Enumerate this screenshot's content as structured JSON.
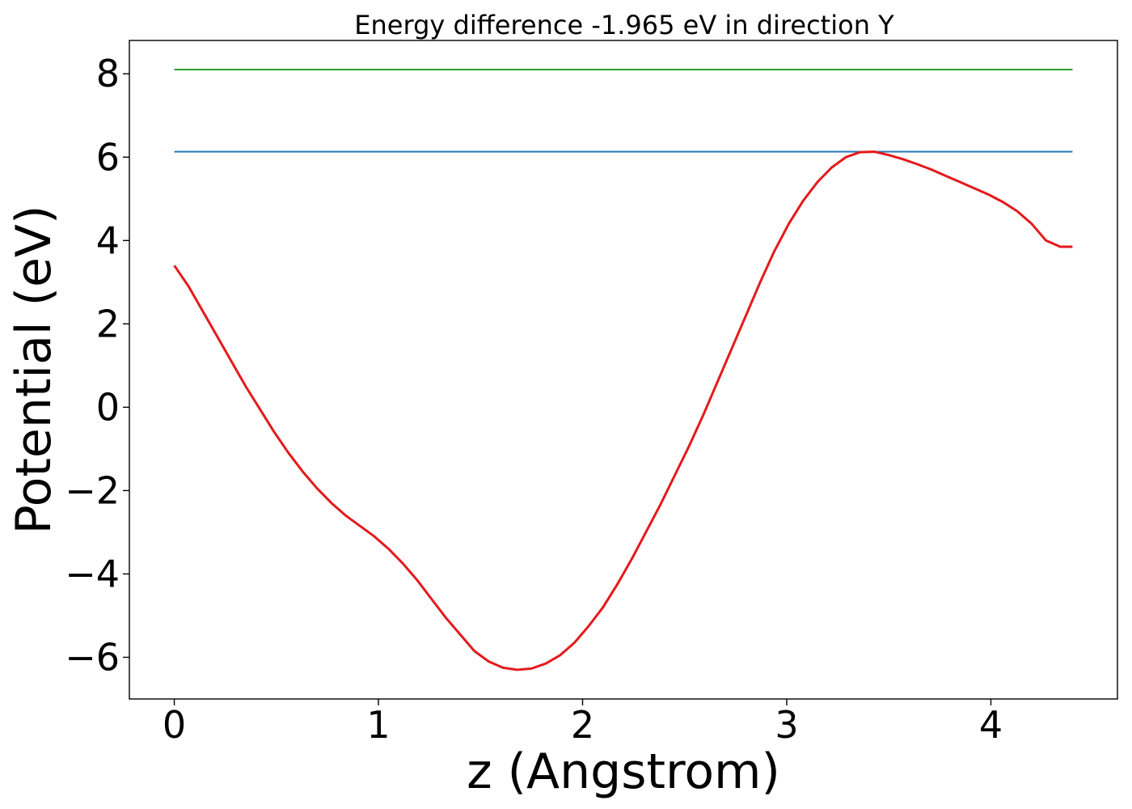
{
  "chart_data": {
    "type": "line",
    "title": "Energy difference -1.965 eV in direction Y",
    "xlabel": "z (Angstrom)",
    "ylabel": "Potential (eV)",
    "xlim": [
      -0.22,
      4.62
    ],
    "ylim": [
      -7.0,
      8.8
    ],
    "xticks": [
      0,
      1,
      2,
      3,
      4
    ],
    "xtick_labels": [
      "0",
      "1",
      "2",
      "3",
      "4"
    ],
    "yticks": [
      -6,
      -4,
      -2,
      0,
      2,
      4,
      6,
      8
    ],
    "ytick_labels": [
      "−6",
      "−4",
      "−2",
      "0",
      "2",
      "4",
      "6",
      "8"
    ],
    "grid": false,
    "series": [
      {
        "color": "#2ca02c",
        "x": [
          0,
          4.4
        ],
        "y": [
          8.1,
          8.1
        ]
      },
      {
        "color": "#1f77b4",
        "x": [
          0,
          4.4
        ],
        "y": [
          6.13,
          6.13
        ]
      },
      {
        "color": "#e41a1c",
        "x": [
          0,
          0.07,
          0.14,
          0.21,
          0.28,
          0.35,
          0.42,
          0.49,
          0.56,
          0.63,
          0.7,
          0.77,
          0.84,
          0.91,
          0.98,
          1.05,
          1.12,
          1.19,
          1.26,
          1.33,
          1.4,
          1.47,
          1.54,
          1.61,
          1.68,
          1.75,
          1.82,
          1.89,
          1.96,
          2.03,
          2.1,
          2.17,
          2.24,
          2.31,
          2.38,
          2.45,
          2.52,
          2.59,
          2.66,
          2.73,
          2.8,
          2.87,
          2.94,
          3.01,
          3.08,
          3.15,
          3.22,
          3.29,
          3.36,
          3.43,
          3.5,
          3.57,
          3.64,
          3.71,
          3.78,
          3.85,
          3.92,
          3.99,
          4.06,
          4.13,
          4.2,
          4.27,
          4.34,
          4.4
        ],
        "y": [
          3.4,
          2.9,
          2.3,
          1.7,
          1.1,
          0.5,
          -0.05,
          -0.6,
          -1.1,
          -1.55,
          -1.95,
          -2.3,
          -2.6,
          -2.85,
          -3.1,
          -3.4,
          -3.75,
          -4.15,
          -4.6,
          -5.05,
          -5.45,
          -5.85,
          -6.1,
          -6.25,
          -6.3,
          -6.27,
          -6.15,
          -5.95,
          -5.65,
          -5.25,
          -4.8,
          -4.25,
          -3.65,
          -3.0,
          -2.35,
          -1.65,
          -0.95,
          -0.2,
          0.6,
          1.4,
          2.2,
          3.0,
          3.75,
          4.4,
          4.95,
          5.4,
          5.75,
          6.0,
          6.12,
          6.13,
          6.05,
          5.95,
          5.83,
          5.7,
          5.55,
          5.4,
          5.25,
          5.1,
          4.92,
          4.7,
          4.4,
          4.0,
          3.85,
          3.85
        ]
      }
    ]
  }
}
